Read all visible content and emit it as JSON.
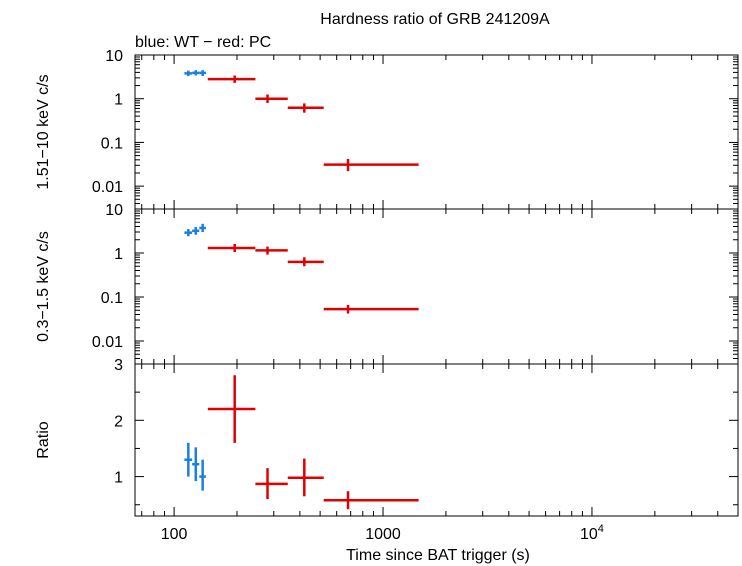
{
  "title": "Hardness ratio of GRB 241209A",
  "subtitle": "blue: WT − red: PC",
  "xlabel": "Time since BAT trigger (s)",
  "colors": {
    "wt": "#1a7fe0",
    "pc": "#e00000",
    "axis": "#000000"
  },
  "chart_data": [
    {
      "type": "scatter",
      "panel": "hard",
      "ylabel": "1.51−10 keV c/s",
      "yscale": "log",
      "ylim": [
        0.003,
        10
      ],
      "yticks": [
        {
          "v": 10,
          "label": "10"
        },
        {
          "v": 1,
          "label": "1"
        },
        {
          "v": 0.1,
          "label": "0.1"
        },
        {
          "v": 0.01,
          "label": "0.01"
        }
      ],
      "series": [
        {
          "mode": "WT",
          "color": "#1a7fe0",
          "points": [
            {
              "x": 117,
              "xerr": [
                112,
                122
              ],
              "y": 3.8,
              "yerr": [
                3.3,
                4.4
              ]
            },
            {
              "x": 127,
              "xerr": [
                122,
                132
              ],
              "y": 3.9,
              "yerr": [
                3.4,
                4.5
              ]
            },
            {
              "x": 137,
              "xerr": [
                132,
                142
              ],
              "y": 3.9,
              "yerr": [
                3.3,
                4.5
              ]
            }
          ]
        },
        {
          "mode": "PC",
          "color": "#e00000",
          "points": [
            {
              "x": 195,
              "xerr": [
                145,
                245
              ],
              "y": 2.8,
              "yerr": [
                2.3,
                3.4
              ]
            },
            {
              "x": 280,
              "xerr": [
                245,
                350
              ],
              "y": 1.0,
              "yerr": [
                0.8,
                1.25
              ]
            },
            {
              "x": 420,
              "xerr": [
                350,
                520
              ],
              "y": 0.62,
              "yerr": [
                0.48,
                0.78
              ]
            },
            {
              "x": 680,
              "xerr": [
                520,
                1480
              ],
              "y": 0.031,
              "yerr": [
                0.022,
                0.042
              ]
            }
          ]
        }
      ]
    },
    {
      "type": "scatter",
      "panel": "soft",
      "ylabel": "0.3−1.5 keV c/s",
      "yscale": "log",
      "ylim": [
        0.003,
        10
      ],
      "yticks": [
        {
          "v": 10,
          "label": "10"
        },
        {
          "v": 1,
          "label": "1"
        },
        {
          "v": 0.1,
          "label": "0.1"
        },
        {
          "v": 0.01,
          "label": "0.01"
        }
      ],
      "series": [
        {
          "mode": "WT",
          "color": "#1a7fe0",
          "points": [
            {
              "x": 117,
              "xerr": [
                112,
                122
              ],
              "y": 2.9,
              "yerr": [
                2.4,
                3.5
              ]
            },
            {
              "x": 127,
              "xerr": [
                122,
                132
              ],
              "y": 3.2,
              "yerr": [
                2.6,
                3.9
              ]
            },
            {
              "x": 137,
              "xerr": [
                132,
                142
              ],
              "y": 3.7,
              "yerr": [
                3.0,
                4.6
              ]
            }
          ]
        },
        {
          "mode": "PC",
          "color": "#e00000",
          "points": [
            {
              "x": 195,
              "xerr": [
                145,
                245
              ],
              "y": 1.3,
              "yerr": [
                1.05,
                1.6
              ]
            },
            {
              "x": 280,
              "xerr": [
                245,
                350
              ],
              "y": 1.15,
              "yerr": [
                0.92,
                1.4
              ]
            },
            {
              "x": 420,
              "xerr": [
                350,
                520
              ],
              "y": 0.63,
              "yerr": [
                0.5,
                0.8
              ]
            },
            {
              "x": 680,
              "xerr": [
                520,
                1480
              ],
              "y": 0.053,
              "yerr": [
                0.042,
                0.066
              ]
            }
          ]
        }
      ]
    },
    {
      "type": "scatter",
      "panel": "ratio",
      "ylabel": "Ratio",
      "yscale": "linear",
      "ylim": [
        0.3,
        3
      ],
      "yticks": [
        {
          "v": 1,
          "label": "1"
        },
        {
          "v": 2,
          "label": "2"
        },
        {
          "v": 3,
          "label": "3"
        }
      ],
      "xscale": "log",
      "xlim": [
        65,
        50000
      ],
      "xticks": [
        {
          "v": 100,
          "label": "100"
        },
        {
          "v": 1000,
          "label": "1000"
        },
        {
          "v": 10000,
          "label": "10",
          "sup": "4"
        }
      ],
      "series": [
        {
          "mode": "WT",
          "color": "#1a7fe0",
          "points": [
            {
              "x": 117,
              "xerr": [
                112,
                122
              ],
              "y": 1.3,
              "yerr": [
                1.0,
                1.6
              ]
            },
            {
              "x": 127,
              "xerr": [
                122,
                132
              ],
              "y": 1.22,
              "yerr": [
                0.92,
                1.52
              ]
            },
            {
              "x": 137,
              "xerr": [
                132,
                142
              ],
              "y": 1.0,
              "yerr": [
                0.75,
                1.3
              ]
            }
          ]
        },
        {
          "mode": "PC",
          "color": "#e00000",
          "points": [
            {
              "x": 195,
              "xerr": [
                145,
                245
              ],
              "y": 2.2,
              "yerr": [
                1.6,
                2.8
              ]
            },
            {
              "x": 280,
              "xerr": [
                245,
                350
              ],
              "y": 0.87,
              "yerr": [
                0.6,
                1.15
              ]
            },
            {
              "x": 420,
              "xerr": [
                350,
                520
              ],
              "y": 0.98,
              "yerr": [
                0.65,
                1.32
              ]
            },
            {
              "x": 680,
              "xerr": [
                520,
                1480
              ],
              "y": 0.58,
              "yerr": [
                0.42,
                0.74
              ]
            }
          ]
        }
      ]
    }
  ]
}
